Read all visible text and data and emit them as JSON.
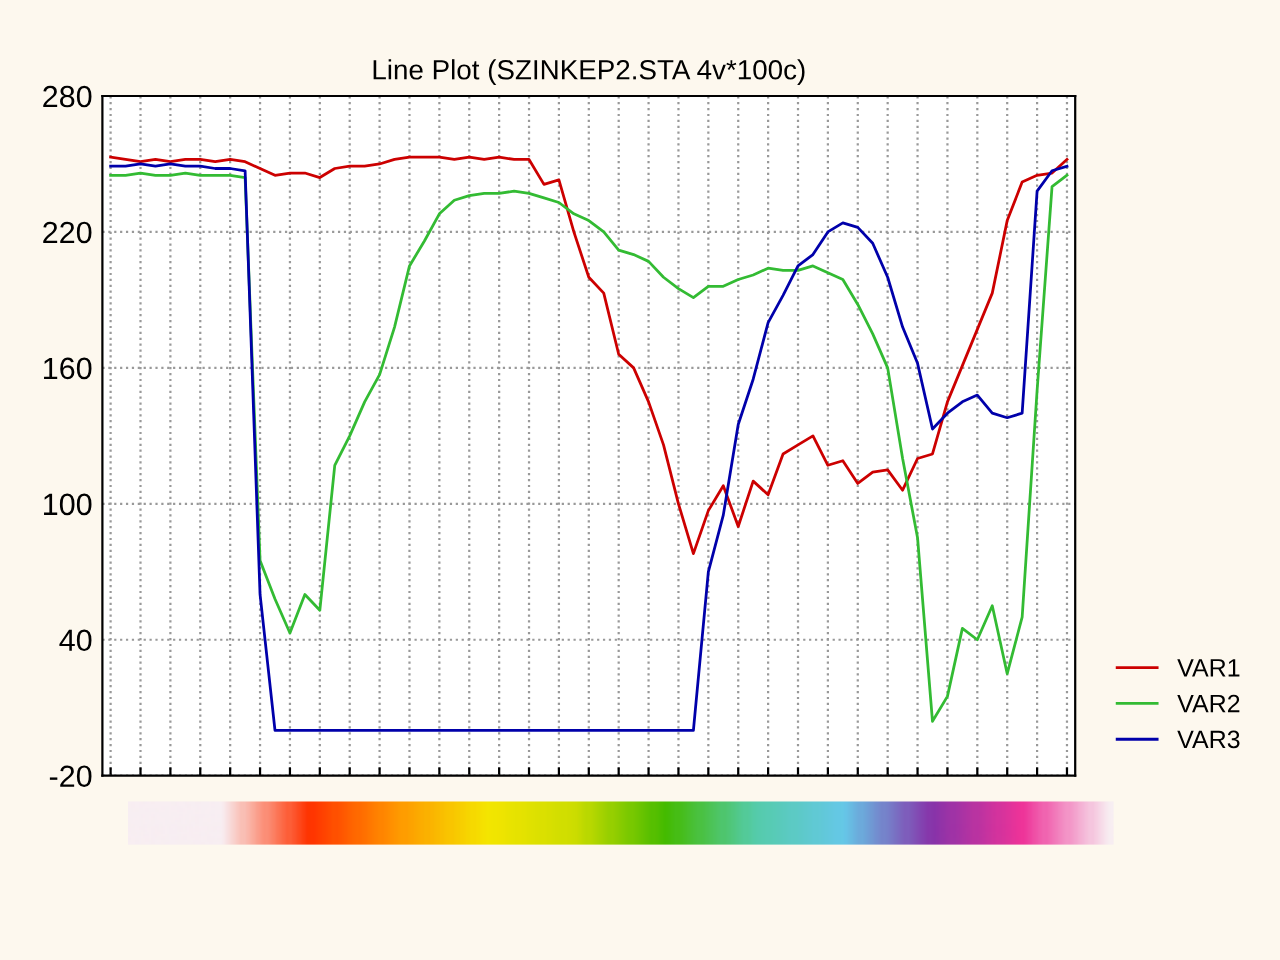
{
  "chart_data": {
    "type": "line",
    "title": "Line Plot (SZINKEP2.STA 4v*100c)",
    "categories": [
      null,
      null,
      null,
      null,
      null,
      null,
      null,
      null,
      null,
      null,
      null,
      null,
      null,
      null,
      null,
      null,
      null,
      null,
      null,
      null,
      null,
      null,
      null,
      null,
      null,
      null,
      null,
      null,
      null,
      null,
      null,
      null,
      null,
      null,
      null,
      null,
      null,
      null,
      null,
      null,
      null,
      null,
      null,
      null,
      null,
      null,
      null,
      null,
      null,
      null,
      null,
      null,
      null,
      null,
      null,
      null,
      null,
      null,
      null,
      null,
      null,
      null,
      null,
      null,
      null
    ],
    "series": [
      {
        "name": "VAR1",
        "color": "#cc0000",
        "values": [
          253,
          252,
          251,
          252,
          251,
          252,
          252,
          251,
          252,
          251,
          248,
          245,
          246,
          246,
          244,
          248,
          249,
          249,
          250,
          252,
          253,
          253,
          253,
          252,
          253,
          252,
          253,
          252,
          252,
          241,
          243,
          220,
          200,
          193,
          166,
          160,
          145,
          126,
          100,
          78,
          97,
          108,
          90,
          110,
          104,
          122,
          126,
          130,
          117,
          119,
          109,
          114,
          115,
          106,
          120,
          122,
          145,
          161,
          177,
          193,
          225,
          242,
          245,
          246,
          252
        ]
      },
      {
        "name": "VAR2",
        "color": "#33bb33",
        "values": [
          245,
          245,
          246,
          245,
          245,
          246,
          245,
          245,
          245,
          244,
          75,
          58,
          43,
          60,
          53,
          117,
          130,
          145,
          157,
          178,
          205,
          216,
          228,
          234,
          236,
          237,
          237,
          238,
          237,
          235,
          233,
          228,
          225,
          220,
          212,
          210,
          207,
          200,
          195,
          191,
          196,
          196,
          199,
          201,
          204,
          203,
          203,
          205,
          202,
          199,
          188,
          175,
          160,
          120,
          85,
          4,
          15,
          45,
          40,
          55,
          25,
          50,
          150,
          240,
          245
        ]
      },
      {
        "name": "VAR3",
        "color": "#0000aa",
        "values": [
          249,
          249,
          250,
          249,
          250,
          249,
          249,
          248,
          248,
          247,
          60,
          0,
          0,
          0,
          0,
          0,
          0,
          0,
          0,
          0,
          0,
          0,
          0,
          0,
          0,
          0,
          0,
          0,
          0,
          0,
          0,
          0,
          0,
          0,
          0,
          0,
          0,
          0,
          0,
          0,
          70,
          95,
          135,
          155,
          180,
          192,
          205,
          210,
          220,
          224,
          222,
          215,
          200,
          178,
          162,
          133,
          140,
          145,
          148,
          140,
          138,
          140,
          238,
          247,
          249
        ]
      }
    ],
    "ylim": [
      -20,
      280
    ],
    "yticks": [
      -20,
      40,
      100,
      160,
      220,
      280
    ],
    "grid": true,
    "legend": "bottom right",
    "tick_labels": "y",
    "marker": "none",
    "line_style": "solid"
  }
}
